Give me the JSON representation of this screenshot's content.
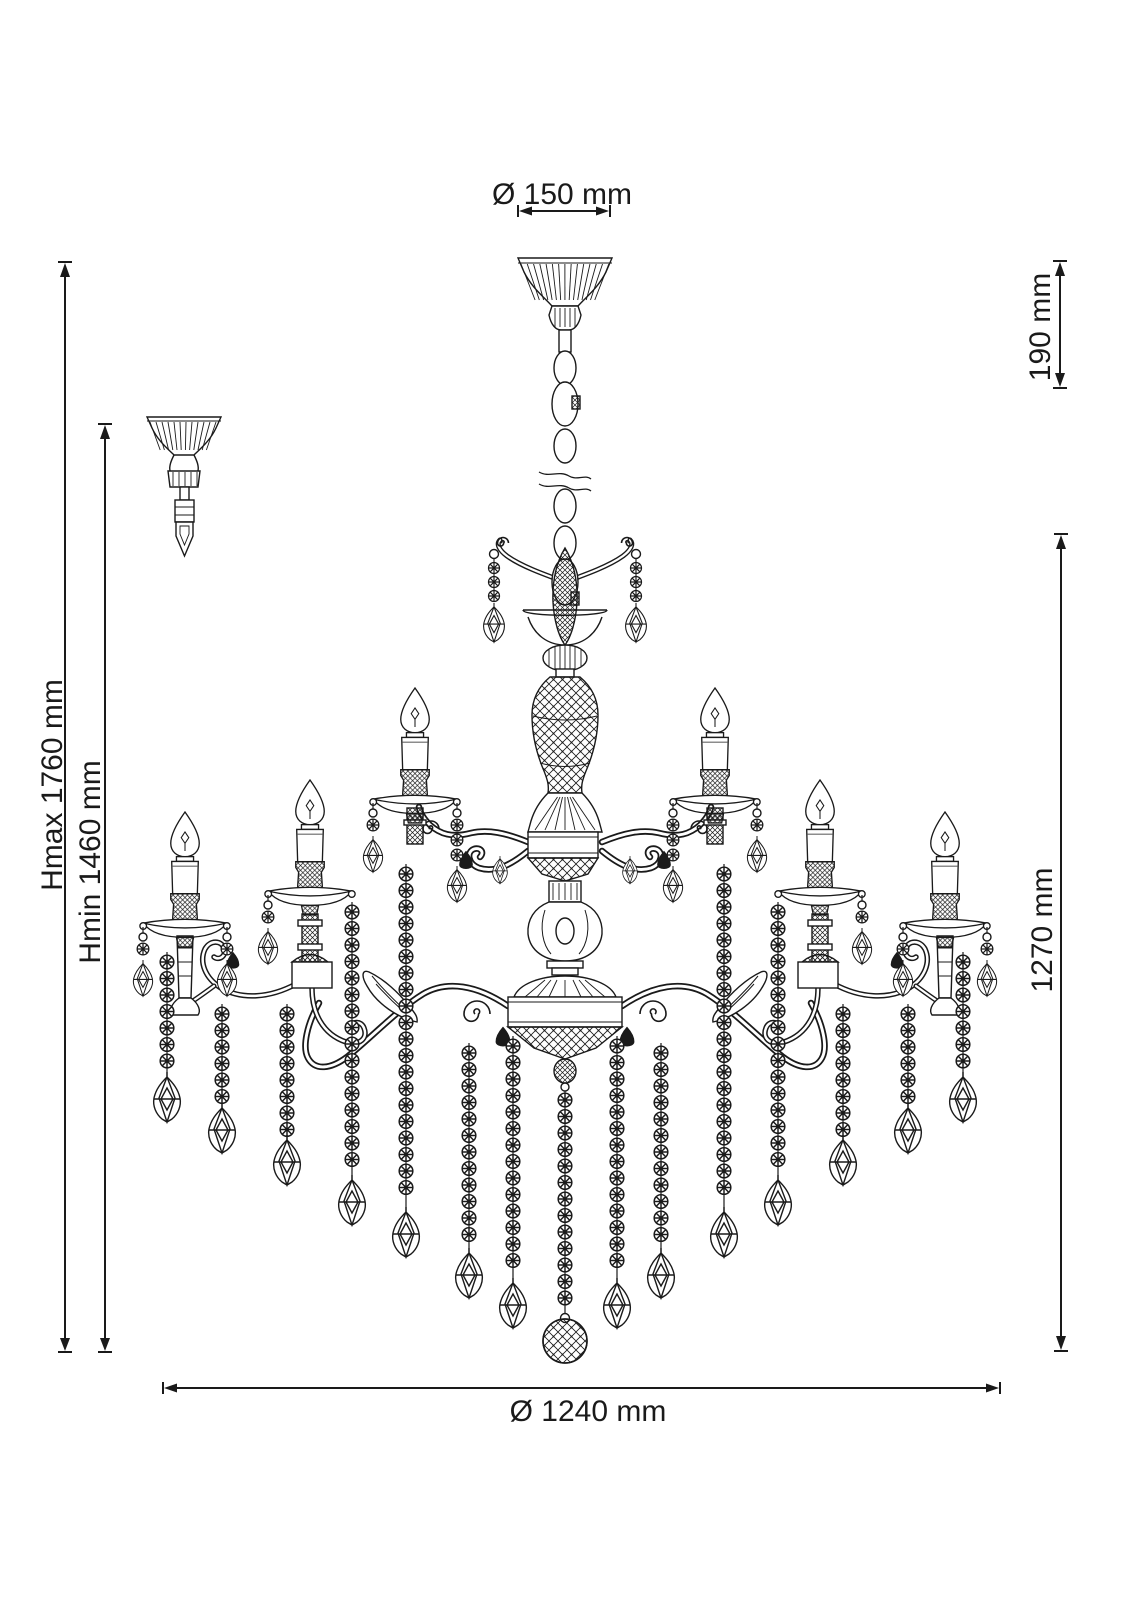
{
  "annotations": {
    "canopy_diameter": "Ø 150 mm",
    "canopy_height": "190 mm",
    "height_max": "Hmax 1760 mm",
    "height_min": "Hmin 1460 mm",
    "fixture_height": "1270 mm",
    "fixture_diameter": "Ø 1240 mm"
  },
  "colors": {
    "line": "#1a1a1a",
    "background": "#ffffff"
  }
}
